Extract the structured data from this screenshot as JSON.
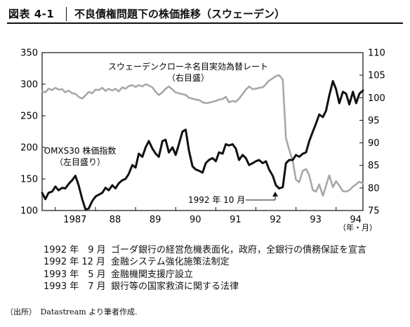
{
  "header": {
    "figure_label": "図表 4-1",
    "title": "不良債権問題下の株価推移（スウェーデン）"
  },
  "chart_data": {
    "type": "line",
    "title": "",
    "x_unit_label": "（年・月）",
    "x_range": [
      1986.67,
      1994.67
    ],
    "x_tick_labels": [
      {
        "x": 1987.0,
        "label": "1987"
      },
      {
        "x": 1988.0,
        "label": "88"
      },
      {
        "x": 1989.0,
        "label": "89"
      },
      {
        "x": 1990.0,
        "label": "90"
      },
      {
        "x": 1991.0,
        "label": "91"
      },
      {
        "x": 1992.0,
        "label": "92"
      },
      {
        "x": 1993.0,
        "label": "93"
      },
      {
        "x": 1994.0,
        "label": "94"
      }
    ],
    "y_left": {
      "range": [
        100,
        350
      ],
      "ticks": [
        100,
        150,
        200,
        250,
        300,
        350
      ]
    },
    "y_right": {
      "range": [
        75,
        110
      ],
      "ticks": [
        75,
        80,
        85,
        90,
        95,
        100,
        105,
        110
      ]
    },
    "grid": false,
    "series": [
      {
        "name": "OMXS30 株価指数",
        "name_line2": "（左目盛り）",
        "axis": "left",
        "color": "#111111",
        "points": [
          [
            1986.67,
            128
          ],
          [
            1986.75,
            118
          ],
          [
            1986.83,
            128
          ],
          [
            1986.92,
            130
          ],
          [
            1987.0,
            138
          ],
          [
            1987.08,
            132
          ],
          [
            1987.17,
            136
          ],
          [
            1987.25,
            135
          ],
          [
            1987.33,
            142
          ],
          [
            1987.42,
            148
          ],
          [
            1987.5,
            155
          ],
          [
            1987.58,
            140
          ],
          [
            1987.67,
            118
          ],
          [
            1987.75,
            102
          ],
          [
            1987.83,
            103
          ],
          [
            1987.92,
            115
          ],
          [
            1988.0,
            122
          ],
          [
            1988.08,
            125
          ],
          [
            1988.17,
            128
          ],
          [
            1988.25,
            136
          ],
          [
            1988.33,
            132
          ],
          [
            1988.42,
            140
          ],
          [
            1988.5,
            135
          ],
          [
            1988.58,
            143
          ],
          [
            1988.67,
            148
          ],
          [
            1988.75,
            150
          ],
          [
            1988.83,
            158
          ],
          [
            1988.92,
            172
          ],
          [
            1989.0,
            168
          ],
          [
            1989.08,
            190
          ],
          [
            1989.17,
            185
          ],
          [
            1989.25,
            200
          ],
          [
            1989.33,
            210
          ],
          [
            1989.42,
            198
          ],
          [
            1989.5,
            190
          ],
          [
            1989.58,
            185
          ],
          [
            1989.67,
            210
          ],
          [
            1989.75,
            212
          ],
          [
            1989.83,
            192
          ],
          [
            1989.92,
            200
          ],
          [
            1990.0,
            188
          ],
          [
            1990.08,
            205
          ],
          [
            1990.17,
            225
          ],
          [
            1990.25,
            228
          ],
          [
            1990.33,
            195
          ],
          [
            1990.42,
            170
          ],
          [
            1990.5,
            165
          ],
          [
            1990.58,
            163
          ],
          [
            1990.67,
            160
          ],
          [
            1990.75,
            175
          ],
          [
            1990.83,
            180
          ],
          [
            1990.92,
            183
          ],
          [
            1991.0,
            178
          ],
          [
            1991.08,
            192
          ],
          [
            1991.17,
            190
          ],
          [
            1991.25,
            205
          ],
          [
            1991.33,
            203
          ],
          [
            1991.42,
            205
          ],
          [
            1991.5,
            198
          ],
          [
            1991.58,
            180
          ],
          [
            1991.67,
            188
          ],
          [
            1991.75,
            183
          ],
          [
            1991.83,
            172
          ],
          [
            1991.92,
            175
          ],
          [
            1992.0,
            178
          ],
          [
            1992.08,
            180
          ],
          [
            1992.17,
            175
          ],
          [
            1992.25,
            178
          ],
          [
            1992.33,
            165
          ],
          [
            1992.42,
            155
          ],
          [
            1992.5,
            140
          ],
          [
            1992.58,
            135
          ],
          [
            1992.67,
            137
          ],
          [
            1992.75,
            175
          ],
          [
            1992.83,
            180
          ],
          [
            1992.92,
            180
          ],
          [
            1993.0,
            188
          ],
          [
            1993.08,
            185
          ],
          [
            1993.17,
            190
          ],
          [
            1993.25,
            192
          ],
          [
            1993.33,
            210
          ],
          [
            1993.42,
            225
          ],
          [
            1993.5,
            238
          ],
          [
            1993.58,
            252
          ],
          [
            1993.67,
            248
          ],
          [
            1993.75,
            258
          ],
          [
            1993.83,
            282
          ],
          [
            1993.92,
            305
          ],
          [
            1994.0,
            292
          ],
          [
            1994.08,
            270
          ],
          [
            1994.17,
            288
          ],
          [
            1994.25,
            285
          ],
          [
            1994.33,
            268
          ],
          [
            1994.42,
            288
          ],
          [
            1994.5,
            270
          ],
          [
            1994.58,
            285
          ],
          [
            1994.67,
            290
          ]
        ]
      },
      {
        "name": "スウェーデンクローネ名目実効為替レート",
        "name_line2": "（右目盛）",
        "axis": "right",
        "color": "#a8a8a8",
        "points": [
          [
            1986.67,
            101.5
          ],
          [
            1986.75,
            101.2
          ],
          [
            1986.83,
            102.0
          ],
          [
            1986.92,
            101.7
          ],
          [
            1987.0,
            102.2
          ],
          [
            1987.08,
            101.8
          ],
          [
            1987.17,
            101.9
          ],
          [
            1987.25,
            101.2
          ],
          [
            1987.33,
            101.6
          ],
          [
            1987.42,
            101.0
          ],
          [
            1987.5,
            100.9
          ],
          [
            1987.58,
            100.2
          ],
          [
            1987.67,
            99.8
          ],
          [
            1987.75,
            100.5
          ],
          [
            1987.83,
            101.3
          ],
          [
            1987.92,
            101.0
          ],
          [
            1988.0,
            101.8
          ],
          [
            1988.08,
            101.7
          ],
          [
            1988.17,
            102.2
          ],
          [
            1988.25,
            101.5
          ],
          [
            1988.33,
            102.0
          ],
          [
            1988.42,
            101.6
          ],
          [
            1988.5,
            102.0
          ],
          [
            1988.58,
            101.4
          ],
          [
            1988.67,
            102.3
          ],
          [
            1988.75,
            102.0
          ],
          [
            1988.83,
            102.6
          ],
          [
            1988.92,
            102.8
          ],
          [
            1989.0,
            102.4
          ],
          [
            1989.08,
            102.8
          ],
          [
            1989.17,
            102.5
          ],
          [
            1989.25,
            103.0
          ],
          [
            1989.33,
            102.7
          ],
          [
            1989.42,
            102.3
          ],
          [
            1989.5,
            101.3
          ],
          [
            1989.58,
            100.6
          ],
          [
            1989.67,
            101.2
          ],
          [
            1989.75,
            102.0
          ],
          [
            1989.83,
            102.5
          ],
          [
            1989.92,
            101.8
          ],
          [
            1990.0,
            101.2
          ],
          [
            1990.08,
            101.0
          ],
          [
            1990.17,
            100.8
          ],
          [
            1990.25,
            100.6
          ],
          [
            1990.33,
            100.0
          ],
          [
            1990.42,
            99.8
          ],
          [
            1990.5,
            99.6
          ],
          [
            1990.58,
            99.5
          ],
          [
            1990.67,
            99.0
          ],
          [
            1990.75,
            98.8
          ],
          [
            1990.83,
            98.9
          ],
          [
            1990.92,
            99.1
          ],
          [
            1991.0,
            99.3
          ],
          [
            1991.08,
            99.6
          ],
          [
            1991.17,
            99.7
          ],
          [
            1991.25,
            100.2
          ],
          [
            1991.33,
            99.0
          ],
          [
            1991.42,
            99.3
          ],
          [
            1991.5,
            99.1
          ],
          [
            1991.58,
            99.8
          ],
          [
            1991.67,
            100.8
          ],
          [
            1991.75,
            101.8
          ],
          [
            1991.83,
            102.5
          ],
          [
            1991.92,
            101.9
          ],
          [
            1992.0,
            102.0
          ],
          [
            1992.08,
            102.2
          ],
          [
            1992.17,
            102.3
          ],
          [
            1992.25,
            103.0
          ],
          [
            1992.33,
            103.8
          ],
          [
            1992.42,
            104.3
          ],
          [
            1992.5,
            104.8
          ],
          [
            1992.58,
            105.0
          ],
          [
            1992.67,
            104.0
          ],
          [
            1992.75,
            91.0
          ],
          [
            1992.83,
            88.5
          ],
          [
            1992.92,
            86.0
          ],
          [
            1993.0,
            81.8
          ],
          [
            1993.08,
            81.3
          ],
          [
            1993.17,
            83.8
          ],
          [
            1993.25,
            84.2
          ],
          [
            1993.33,
            82.8
          ],
          [
            1993.42,
            79.5
          ],
          [
            1993.5,
            79.2
          ],
          [
            1993.58,
            80.8
          ],
          [
            1993.67,
            78.3
          ],
          [
            1993.75,
            80.5
          ],
          [
            1993.83,
            82.8
          ],
          [
            1993.92,
            80.2
          ],
          [
            1994.0,
            81.5
          ],
          [
            1994.08,
            80.5
          ],
          [
            1994.17,
            79.3
          ],
          [
            1994.25,
            79.2
          ],
          [
            1994.33,
            79.5
          ],
          [
            1994.42,
            80.3
          ],
          [
            1994.5,
            80.8
          ],
          [
            1994.58,
            81.4
          ],
          [
            1994.67,
            81.0
          ]
        ]
      }
    ],
    "annotations": [
      {
        "text": "1992 年 10 月",
        "x": 1992.83,
        "y": 140
      }
    ]
  },
  "events": [
    {
      "date": "1992 年　9 月",
      "text": "ゴーダ銀行の経営危機表面化，政府，全銀行の債務保証を宣言"
    },
    {
      "date": "1992 年 12 月",
      "text": "金融システム強化施策法制定"
    },
    {
      "date": "1993 年　5 月",
      "text": "金融機関支援庁設立"
    },
    {
      "date": "1993 年　7 月",
      "text": "銀行等の国家救済に関する法律"
    }
  ],
  "source": "（出所）　Datastream より筆者作成."
}
